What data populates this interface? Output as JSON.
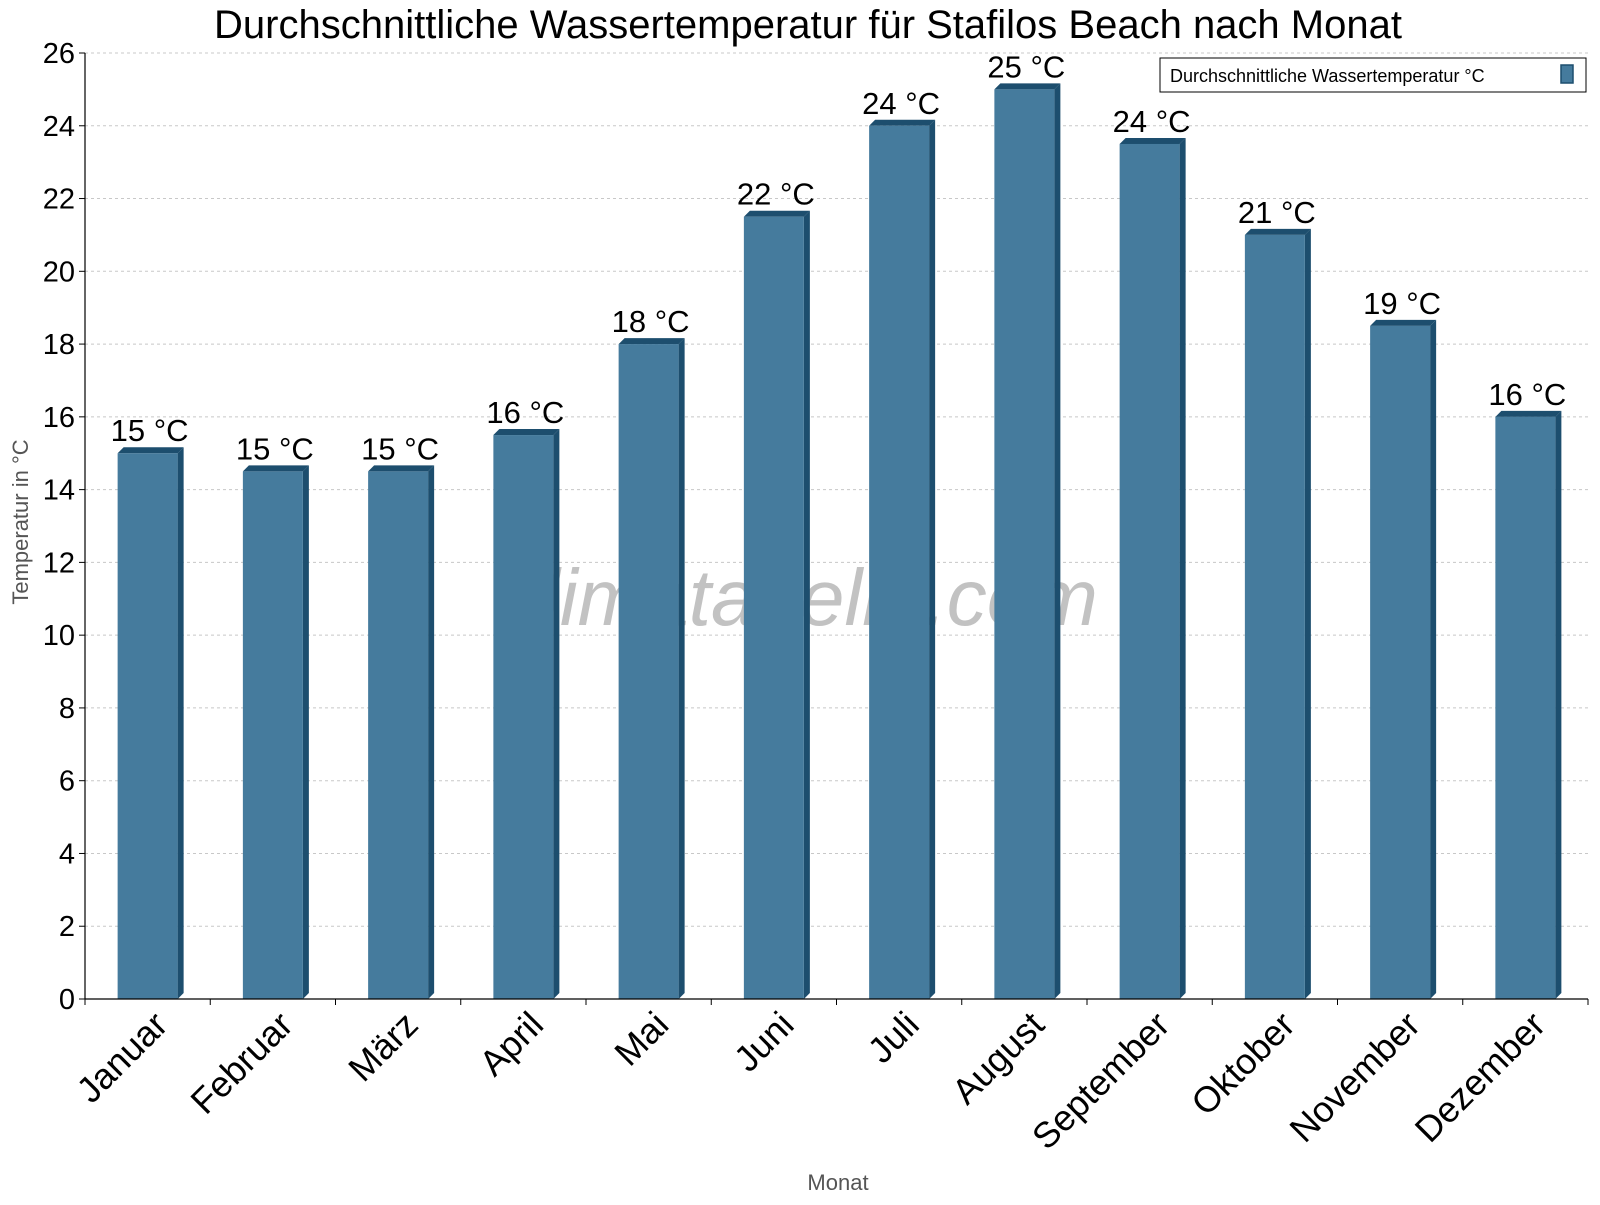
{
  "chart_data": {
    "type": "bar",
    "title": "Durchschnittliche Wassertemperatur für Stafilos Beach nach Monat",
    "xlabel": "Monat",
    "ylabel": "Temperatur in °C",
    "categories": [
      "Januar",
      "Februar",
      "März",
      "April",
      "Mai",
      "Juni",
      "Juli",
      "August",
      "September",
      "Oktober",
      "November",
      "Dezember"
    ],
    "series": [
      {
        "name": "Durchschnittliche Wassertemperatur °C",
        "values": [
          15.0,
          14.5,
          14.5,
          15.5,
          18.0,
          21.5,
          24.0,
          25.0,
          23.5,
          21.0,
          18.5,
          16.0
        ],
        "labels": [
          "15 °C",
          "15 °C",
          "15 °C",
          "16 °C",
          "18 °C",
          "22 °C",
          "24 °C",
          "25 °C",
          "24 °C",
          "21 °C",
          "19 °C",
          "16 °C"
        ],
        "color": "#457b9d",
        "edge_color": "#1d4e6e"
      }
    ],
    "ylim": [
      0,
      26
    ],
    "yticks": [
      "0",
      "2",
      "4",
      "6",
      "8",
      "10",
      "12",
      "14",
      "16",
      "18",
      "20",
      "22",
      "24",
      "26"
    ],
    "grid": true,
    "legend_position": "top-right",
    "watermark": "klimatabelle.com"
  }
}
